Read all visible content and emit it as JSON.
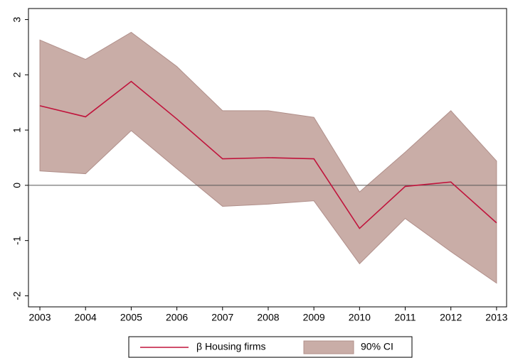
{
  "chart_data": {
    "type": "line_band",
    "x": [
      2003,
      2004,
      2005,
      2006,
      2007,
      2008,
      2009,
      2010,
      2011,
      2012,
      2013
    ],
    "series": [
      {
        "name": "β Housing firms",
        "color": "#c0143c",
        "values": [
          1.44,
          1.24,
          1.88,
          1.2,
          0.48,
          0.5,
          0.48,
          -0.78,
          -0.02,
          0.06,
          -0.68
        ]
      },
      {
        "name": "90% CI",
        "color": "#c9ada7",
        "upper": [
          2.63,
          2.28,
          2.77,
          2.15,
          1.35,
          1.35,
          1.23,
          -0.12,
          0.6,
          1.35,
          0.44
        ],
        "lower": [
          0.26,
          0.21,
          0.99,
          0.3,
          -0.38,
          -0.34,
          -0.28,
          -1.42,
          -0.6,
          -1.2,
          -1.77
        ]
      }
    ],
    "xlim": [
      2002.75,
      2013.22
    ],
    "ylim": [
      -2.2,
      3.2
    ],
    "xticks": [
      2003,
      2004,
      2005,
      2006,
      2007,
      2008,
      2009,
      2010,
      2011,
      2012,
      2013
    ],
    "yticks": [
      -2,
      -1,
      0,
      1,
      2,
      3
    ],
    "hline": 0,
    "legend": "bottom"
  }
}
